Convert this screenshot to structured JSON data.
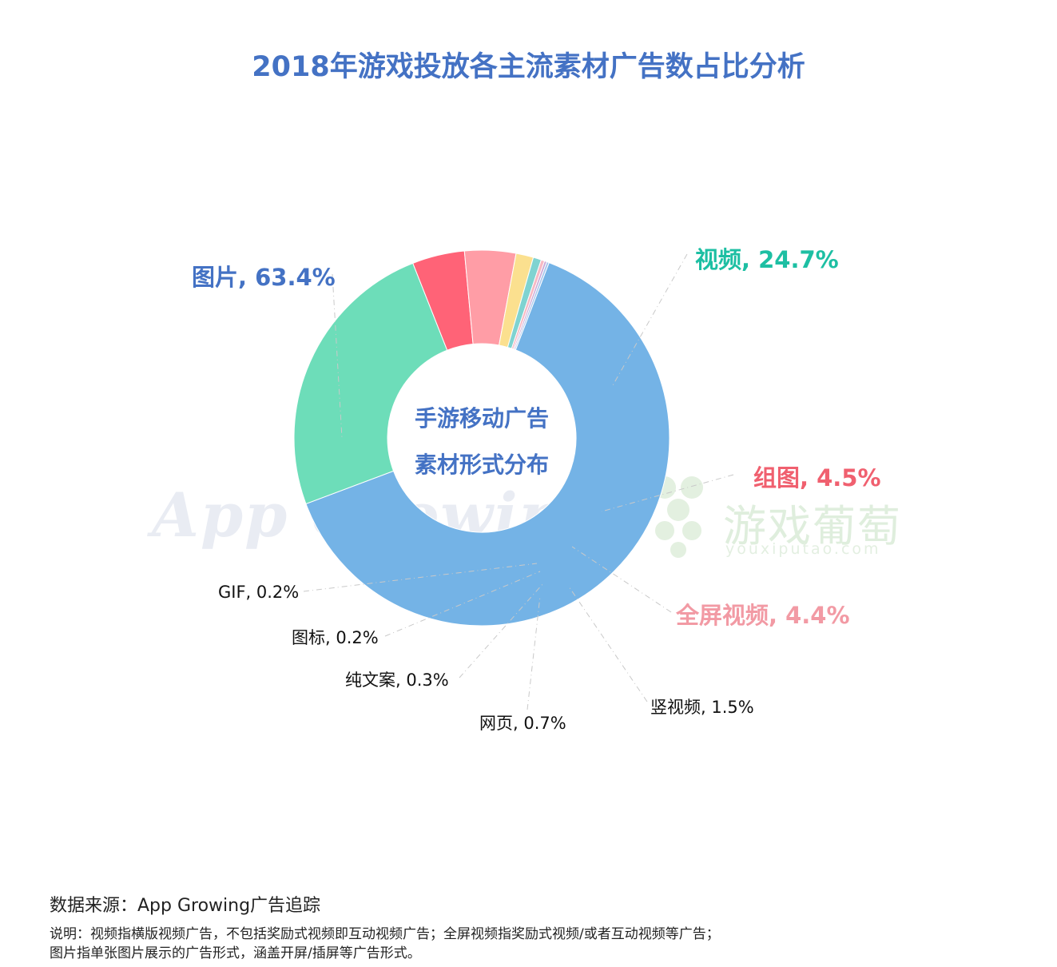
{
  "chart_data": {
    "type": "pie",
    "variant": "donut",
    "title": "2018年游戏投放各主流素材广告数占比分析",
    "center_label": [
      "手游移动广告",
      "素材形式分布"
    ],
    "slices": [
      {
        "name": "图片",
        "value": 63.4,
        "label": "图片, 63.4%",
        "color": "#74B3E6",
        "label_color": "#4472C4",
        "bold": true
      },
      {
        "name": "视频",
        "value": 24.7,
        "label": "视频, 24.7%",
        "color": "#6DDDB9",
        "label_color": "#1DBFA3",
        "bold": true
      },
      {
        "name": "组图",
        "value": 4.5,
        "label": "组图, 4.5%",
        "color": "#FF6377",
        "label_color": "#F0606F",
        "bold": true
      },
      {
        "name": "全屏视频",
        "value": 4.4,
        "label": "全屏视频, 4.4%",
        "color": "#FF9DA6",
        "label_color": "#F29AA4",
        "bold": true
      },
      {
        "name": "竖视频",
        "value": 1.5,
        "label": "竖视频, 1.5%",
        "color": "#FBE08F",
        "label_color": "#111111",
        "bold": false
      },
      {
        "name": "网页",
        "value": 0.7,
        "label": "网页, 0.7%",
        "color": "#7FD3D1",
        "label_color": "#111111",
        "bold": false
      },
      {
        "name": "纯文案",
        "value": 0.3,
        "label": "纯文案, 0.3%",
        "color": "#F7B9C3",
        "label_color": "#111111",
        "bold": false
      },
      {
        "name": "图标",
        "value": 0.2,
        "label": "图标, 0.2%",
        "color": "#C9A6D6",
        "label_color": "#111111",
        "bold": false
      },
      {
        "name": "GIF",
        "value": 0.2,
        "label": "GIF, 0.2%",
        "color": "#A9C7EC",
        "label_color": "#111111",
        "bold": false
      }
    ]
  },
  "watermarks": {
    "left": "App Growing",
    "right_cn": "游戏葡萄",
    "right_en": "youxiputao.com"
  },
  "footer": {
    "source": "数据来源：App Growing广告追踪",
    "note_line1": "说明：视频指横版视频广告，不包括奖励式视频即互动视频广告；全屏视频指奖励式视频/或者互动视频等广告；",
    "note_line2": "图片指单张图片展示的广告形式，涵盖开屏/插屏等广告形式。"
  }
}
